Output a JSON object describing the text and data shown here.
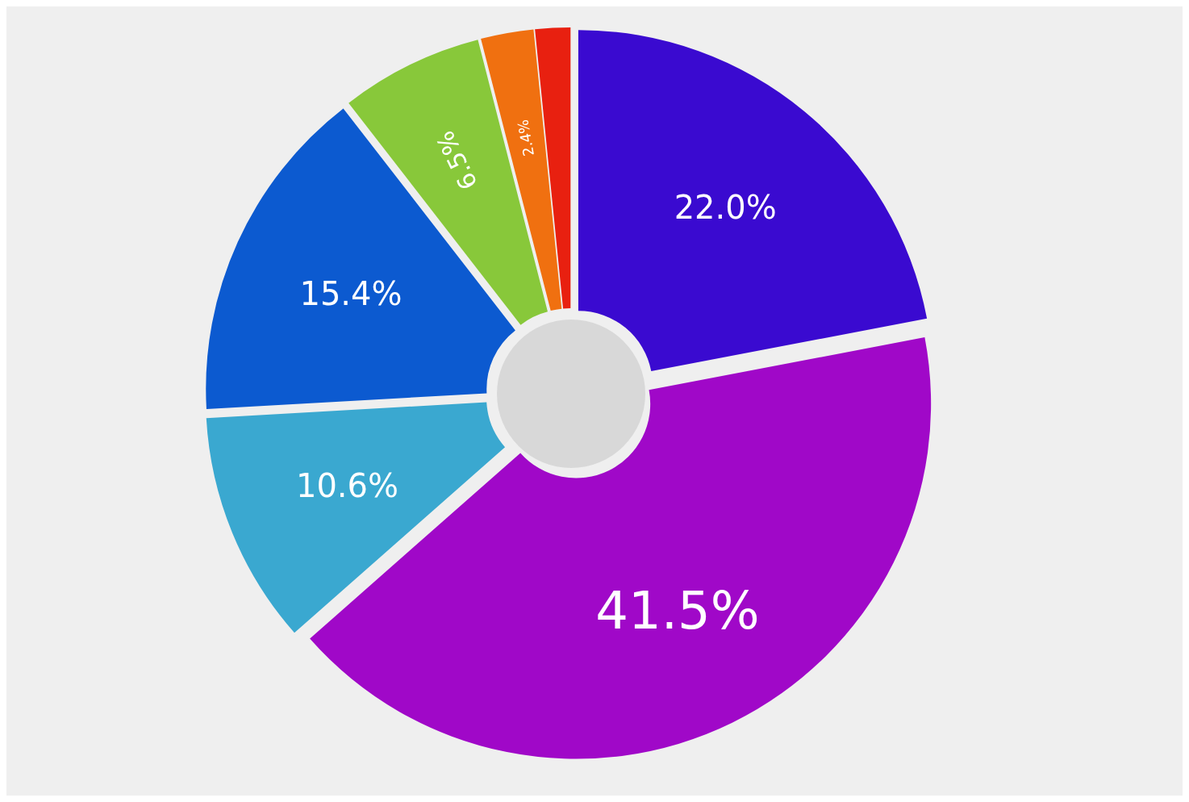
{
  "chart_data": {
    "type": "donut",
    "categories": [
      null,
      null,
      null,
      null,
      null,
      null,
      null
    ],
    "values": [
      22.0,
      41.5,
      10.6,
      15.4,
      6.5,
      2.4,
      1.6
    ],
    "colors": [
      "#3a0ad0",
      "#a008c8",
      "#3aa8d0",
      "#0c5ad0",
      "#88c83a",
      "#f07010",
      "#e82010"
    ],
    "value_labels": [
      "22.0%",
      "41.5%",
      "10.6%",
      "15.4%",
      "6.5%",
      "2.4%",
      null
    ]
  }
}
